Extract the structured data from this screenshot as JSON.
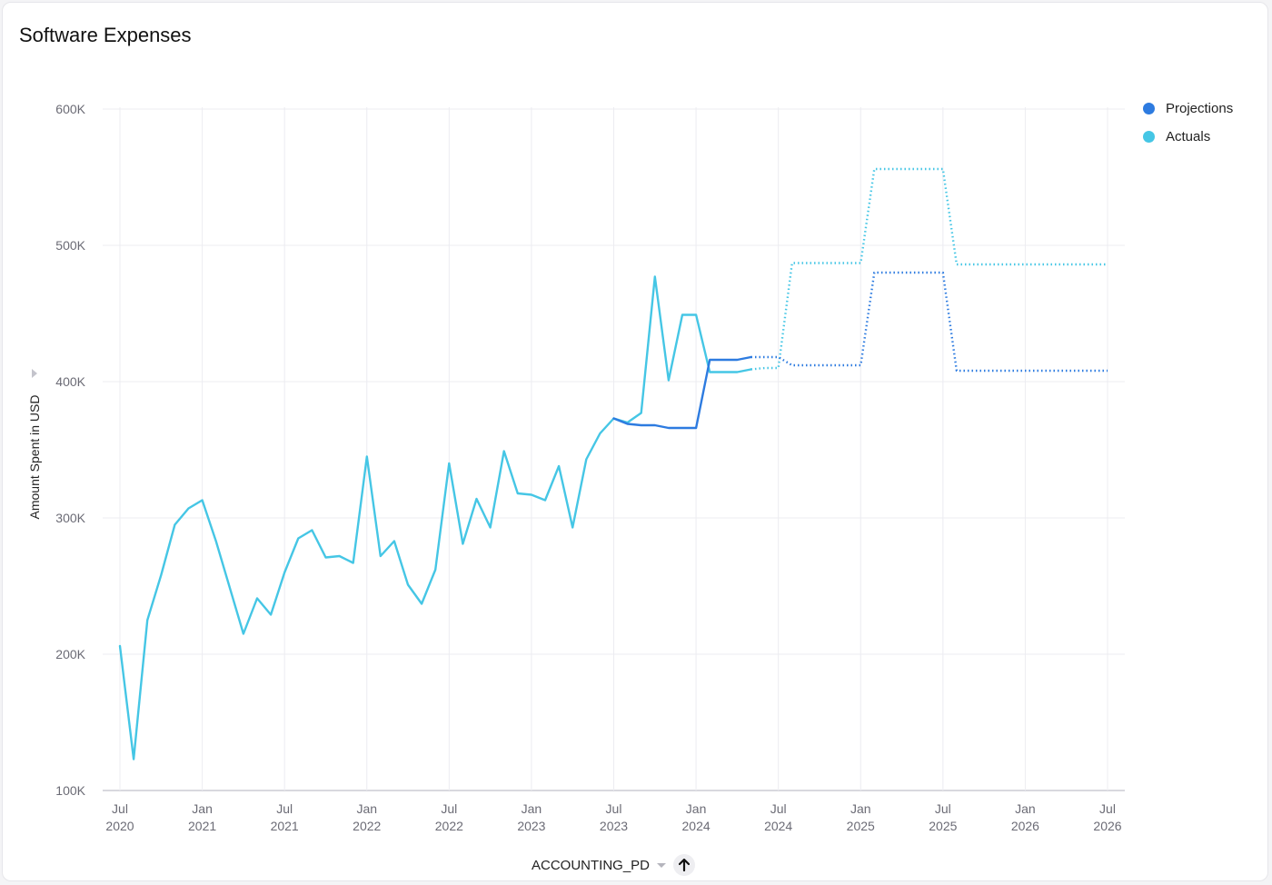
{
  "title": "Software Expenses",
  "x_field": "ACCOUNTING_PD",
  "sort_icon": "arrow-up-icon",
  "colors": {
    "actuals": "#45c6e5",
    "projections": "#2d7be0",
    "grid": "#ececf1",
    "axis": "#d8d8de"
  },
  "legend": [
    {
      "label": "Projections",
      "color": "#2d7be0"
    },
    {
      "label": "Actuals",
      "color": "#45c6e5"
    }
  ],
  "chart_data": {
    "type": "line",
    "title": "Software Expenses",
    "xlabel": "ACCOUNTING_PD",
    "ylabel": "Amount Spent in USD",
    "ylim": [
      100000,
      600000
    ],
    "xlim": [
      "2020-07",
      "2026-07"
    ],
    "y_ticks": [
      "100K",
      "200K",
      "300K",
      "400K",
      "500K",
      "600K"
    ],
    "x_ticks": [
      [
        "Jul",
        "2020"
      ],
      [
        "Jan",
        "2021"
      ],
      [
        "Jul",
        "2021"
      ],
      [
        "Jan",
        "2022"
      ],
      [
        "Jul",
        "2022"
      ],
      [
        "Jan",
        "2023"
      ],
      [
        "Jul",
        "2023"
      ],
      [
        "Jan",
        "2024"
      ],
      [
        "Jul",
        "2024"
      ],
      [
        "Jan",
        "2025"
      ],
      [
        "Jul",
        "2025"
      ],
      [
        "Jan",
        "2026"
      ],
      [
        "Jul",
        "2026"
      ]
    ],
    "grid": true,
    "legend_position": "top-right",
    "series": [
      {
        "name": "Actuals",
        "style": "solid",
        "points": [
          [
            "2020-07",
            206000
          ],
          [
            "2020-08",
            123000
          ],
          [
            "2020-09",
            225000
          ],
          [
            "2020-10",
            258000
          ],
          [
            "2020-11",
            295000
          ],
          [
            "2020-12",
            307000
          ],
          [
            "2021-01",
            313000
          ],
          [
            "2021-02",
            283000
          ],
          [
            "2021-03",
            249000
          ],
          [
            "2021-04",
            215000
          ],
          [
            "2021-05",
            241000
          ],
          [
            "2021-06",
            229000
          ],
          [
            "2021-07",
            260000
          ],
          [
            "2021-08",
            285000
          ],
          [
            "2021-09",
            291000
          ],
          [
            "2021-10",
            271000
          ],
          [
            "2021-11",
            272000
          ],
          [
            "2021-12",
            267000
          ],
          [
            "2022-01",
            345000
          ],
          [
            "2022-02",
            272000
          ],
          [
            "2022-03",
            283000
          ],
          [
            "2022-04",
            251000
          ],
          [
            "2022-05",
            237000
          ],
          [
            "2022-06",
            262000
          ],
          [
            "2022-07",
            340000
          ],
          [
            "2022-08",
            281000
          ],
          [
            "2022-09",
            314000
          ],
          [
            "2022-10",
            293000
          ],
          [
            "2022-11",
            349000
          ],
          [
            "2022-12",
            318000
          ],
          [
            "2023-01",
            317000
          ],
          [
            "2023-02",
            313000
          ],
          [
            "2023-03",
            338000
          ],
          [
            "2023-04",
            293000
          ],
          [
            "2023-05",
            343000
          ],
          [
            "2023-06",
            362000
          ],
          [
            "2023-07",
            373000
          ],
          [
            "2023-08",
            370000
          ],
          [
            "2023-09",
            377000
          ],
          [
            "2023-10",
            477000
          ],
          [
            "2023-11",
            401000
          ],
          [
            "2023-12",
            449000
          ],
          [
            "2024-01",
            449000
          ],
          [
            "2024-02",
            407000
          ],
          [
            "2024-03",
            407000
          ],
          [
            "2024-04",
            407000
          ],
          [
            "2024-05",
            409000
          ]
        ]
      },
      {
        "name": "Actuals",
        "style": "dotted",
        "points": [
          [
            "2024-05",
            409000
          ],
          [
            "2024-06",
            410000
          ],
          [
            "2024-07",
            410000
          ],
          [
            "2024-08",
            487000
          ],
          [
            "2024-09",
            487000
          ],
          [
            "2024-10",
            487000
          ],
          [
            "2024-11",
            487000
          ],
          [
            "2024-12",
            487000
          ],
          [
            "2025-01",
            487000
          ],
          [
            "2025-02",
            556000
          ],
          [
            "2025-03",
            556000
          ],
          [
            "2025-04",
            556000
          ],
          [
            "2025-05",
            556000
          ],
          [
            "2025-06",
            556000
          ],
          [
            "2025-07",
            556000
          ],
          [
            "2025-08",
            486000
          ],
          [
            "2025-09",
            486000
          ],
          [
            "2025-10",
            486000
          ],
          [
            "2025-11",
            486000
          ],
          [
            "2025-12",
            486000
          ],
          [
            "2026-01",
            486000
          ],
          [
            "2026-02",
            486000
          ],
          [
            "2026-03",
            486000
          ],
          [
            "2026-04",
            486000
          ],
          [
            "2026-05",
            486000
          ],
          [
            "2026-06",
            486000
          ],
          [
            "2026-07",
            486000
          ]
        ]
      },
      {
        "name": "Projections",
        "style": "solid",
        "points": [
          [
            "2023-07",
            373000
          ],
          [
            "2023-08",
            369000
          ],
          [
            "2023-09",
            368000
          ],
          [
            "2023-10",
            368000
          ],
          [
            "2023-11",
            366000
          ],
          [
            "2023-12",
            366000
          ],
          [
            "2024-01",
            366000
          ],
          [
            "2024-02",
            416000
          ],
          [
            "2024-03",
            416000
          ],
          [
            "2024-04",
            416000
          ],
          [
            "2024-05",
            418000
          ]
        ]
      },
      {
        "name": "Projections",
        "style": "dotted",
        "points": [
          [
            "2024-05",
            418000
          ],
          [
            "2024-06",
            418000
          ],
          [
            "2024-07",
            418000
          ],
          [
            "2024-08",
            412000
          ],
          [
            "2024-09",
            412000
          ],
          [
            "2024-10",
            412000
          ],
          [
            "2024-11",
            412000
          ],
          [
            "2024-12",
            412000
          ],
          [
            "2025-01",
            412000
          ],
          [
            "2025-02",
            480000
          ],
          [
            "2025-03",
            480000
          ],
          [
            "2025-04",
            480000
          ],
          [
            "2025-05",
            480000
          ],
          [
            "2025-06",
            480000
          ],
          [
            "2025-07",
            480000
          ],
          [
            "2025-08",
            408000
          ],
          [
            "2025-09",
            408000
          ],
          [
            "2025-10",
            408000
          ],
          [
            "2025-11",
            408000
          ],
          [
            "2025-12",
            408000
          ],
          [
            "2026-01",
            408000
          ],
          [
            "2026-02",
            408000
          ],
          [
            "2026-03",
            408000
          ],
          [
            "2026-04",
            408000
          ],
          [
            "2026-05",
            408000
          ],
          [
            "2026-06",
            408000
          ],
          [
            "2026-07",
            408000
          ]
        ]
      }
    ]
  }
}
